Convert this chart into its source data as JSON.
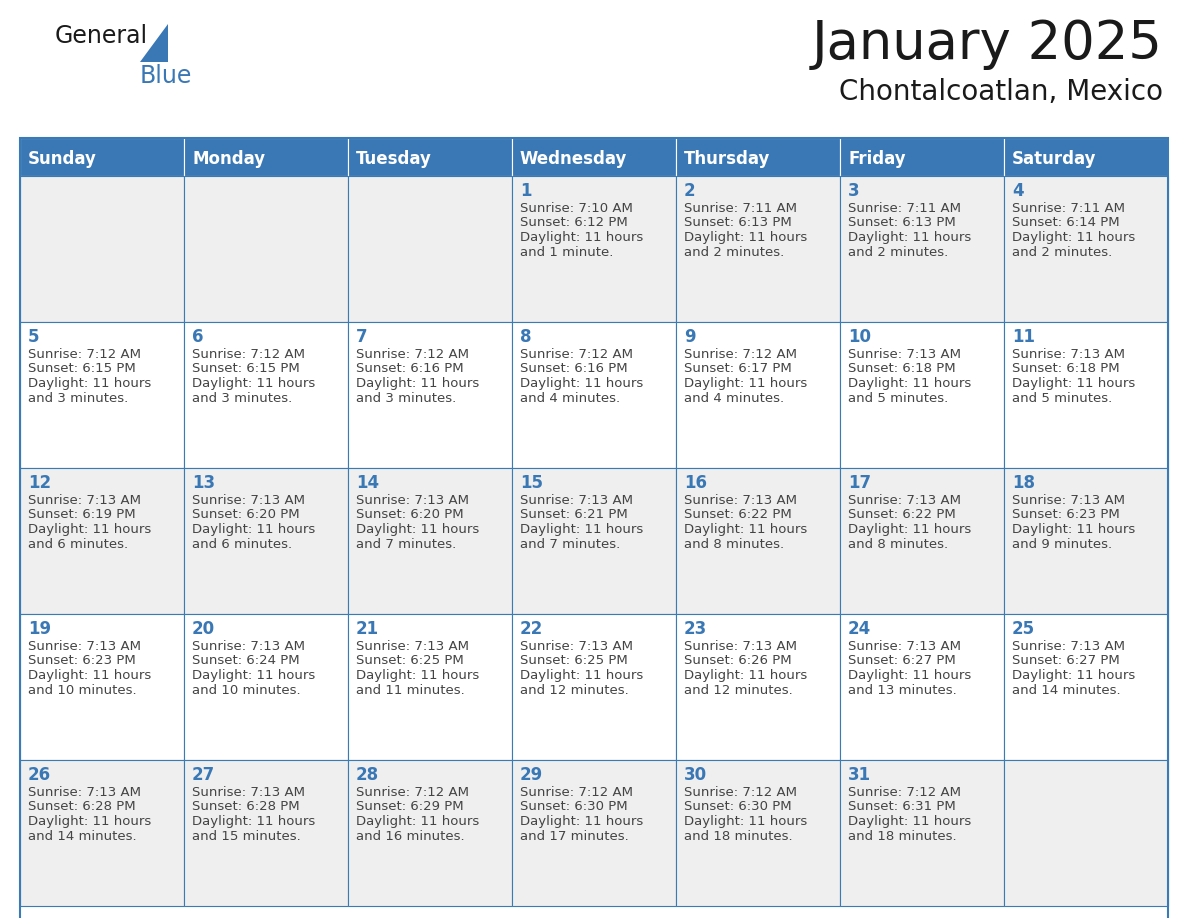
{
  "title": "January 2025",
  "subtitle": "Chontalcoatlan, Mexico",
  "days_of_week": [
    "Sunday",
    "Monday",
    "Tuesday",
    "Wednesday",
    "Thursday",
    "Friday",
    "Saturday"
  ],
  "header_bg_color": "#3A78B5",
  "header_text_color": "#FFFFFF",
  "cell_bg_row0": "#EFEFEF",
  "cell_bg_row1": "#FFFFFF",
  "cell_border_color": "#3A7BB5",
  "day_number_color": "#3A78B5",
  "text_color": "#444444",
  "title_color": "#1a1a1a",
  "logo_general_color": "#1a1a1a",
  "logo_blue_color": "#3A78B5",
  "weeks": [
    [
      {
        "day": null,
        "sunrise": null,
        "sunset": null,
        "daylight": null
      },
      {
        "day": null,
        "sunrise": null,
        "sunset": null,
        "daylight": null
      },
      {
        "day": null,
        "sunrise": null,
        "sunset": null,
        "daylight": null
      },
      {
        "day": 1,
        "sunrise": "7:10 AM",
        "sunset": "6:12 PM",
        "daylight": "11 hours and 1 minute."
      },
      {
        "day": 2,
        "sunrise": "7:11 AM",
        "sunset": "6:13 PM",
        "daylight": "11 hours and 2 minutes."
      },
      {
        "day": 3,
        "sunrise": "7:11 AM",
        "sunset": "6:13 PM",
        "daylight": "11 hours and 2 minutes."
      },
      {
        "day": 4,
        "sunrise": "7:11 AM",
        "sunset": "6:14 PM",
        "daylight": "11 hours and 2 minutes."
      }
    ],
    [
      {
        "day": 5,
        "sunrise": "7:12 AM",
        "sunset": "6:15 PM",
        "daylight": "11 hours and 3 minutes."
      },
      {
        "day": 6,
        "sunrise": "7:12 AM",
        "sunset": "6:15 PM",
        "daylight": "11 hours and 3 minutes."
      },
      {
        "day": 7,
        "sunrise": "7:12 AM",
        "sunset": "6:16 PM",
        "daylight": "11 hours and 3 minutes."
      },
      {
        "day": 8,
        "sunrise": "7:12 AM",
        "sunset": "6:16 PM",
        "daylight": "11 hours and 4 minutes."
      },
      {
        "day": 9,
        "sunrise": "7:12 AM",
        "sunset": "6:17 PM",
        "daylight": "11 hours and 4 minutes."
      },
      {
        "day": 10,
        "sunrise": "7:13 AM",
        "sunset": "6:18 PM",
        "daylight": "11 hours and 5 minutes."
      },
      {
        "day": 11,
        "sunrise": "7:13 AM",
        "sunset": "6:18 PM",
        "daylight": "11 hours and 5 minutes."
      }
    ],
    [
      {
        "day": 12,
        "sunrise": "7:13 AM",
        "sunset": "6:19 PM",
        "daylight": "11 hours and 6 minutes."
      },
      {
        "day": 13,
        "sunrise": "7:13 AM",
        "sunset": "6:20 PM",
        "daylight": "11 hours and 6 minutes."
      },
      {
        "day": 14,
        "sunrise": "7:13 AM",
        "sunset": "6:20 PM",
        "daylight": "11 hours and 7 minutes."
      },
      {
        "day": 15,
        "sunrise": "7:13 AM",
        "sunset": "6:21 PM",
        "daylight": "11 hours and 7 minutes."
      },
      {
        "day": 16,
        "sunrise": "7:13 AM",
        "sunset": "6:22 PM",
        "daylight": "11 hours and 8 minutes."
      },
      {
        "day": 17,
        "sunrise": "7:13 AM",
        "sunset": "6:22 PM",
        "daylight": "11 hours and 8 minutes."
      },
      {
        "day": 18,
        "sunrise": "7:13 AM",
        "sunset": "6:23 PM",
        "daylight": "11 hours and 9 minutes."
      }
    ],
    [
      {
        "day": 19,
        "sunrise": "7:13 AM",
        "sunset": "6:23 PM",
        "daylight": "11 hours and 10 minutes."
      },
      {
        "day": 20,
        "sunrise": "7:13 AM",
        "sunset": "6:24 PM",
        "daylight": "11 hours and 10 minutes."
      },
      {
        "day": 21,
        "sunrise": "7:13 AM",
        "sunset": "6:25 PM",
        "daylight": "11 hours and 11 minutes."
      },
      {
        "day": 22,
        "sunrise": "7:13 AM",
        "sunset": "6:25 PM",
        "daylight": "11 hours and 12 minutes."
      },
      {
        "day": 23,
        "sunrise": "7:13 AM",
        "sunset": "6:26 PM",
        "daylight": "11 hours and 12 minutes."
      },
      {
        "day": 24,
        "sunrise": "7:13 AM",
        "sunset": "6:27 PM",
        "daylight": "11 hours and 13 minutes."
      },
      {
        "day": 25,
        "sunrise": "7:13 AM",
        "sunset": "6:27 PM",
        "daylight": "11 hours and 14 minutes."
      }
    ],
    [
      {
        "day": 26,
        "sunrise": "7:13 AM",
        "sunset": "6:28 PM",
        "daylight": "11 hours and 14 minutes."
      },
      {
        "day": 27,
        "sunrise": "7:13 AM",
        "sunset": "6:28 PM",
        "daylight": "11 hours and 15 minutes."
      },
      {
        "day": 28,
        "sunrise": "7:12 AM",
        "sunset": "6:29 PM",
        "daylight": "11 hours and 16 minutes."
      },
      {
        "day": 29,
        "sunrise": "7:12 AM",
        "sunset": "6:30 PM",
        "daylight": "11 hours and 17 minutes."
      },
      {
        "day": 30,
        "sunrise": "7:12 AM",
        "sunset": "6:30 PM",
        "daylight": "11 hours and 18 minutes."
      },
      {
        "day": 31,
        "sunrise": "7:12 AM",
        "sunset": "6:31 PM",
        "daylight": "11 hours and 18 minutes."
      },
      {
        "day": null,
        "sunrise": null,
        "sunset": null,
        "daylight": null
      }
    ]
  ]
}
